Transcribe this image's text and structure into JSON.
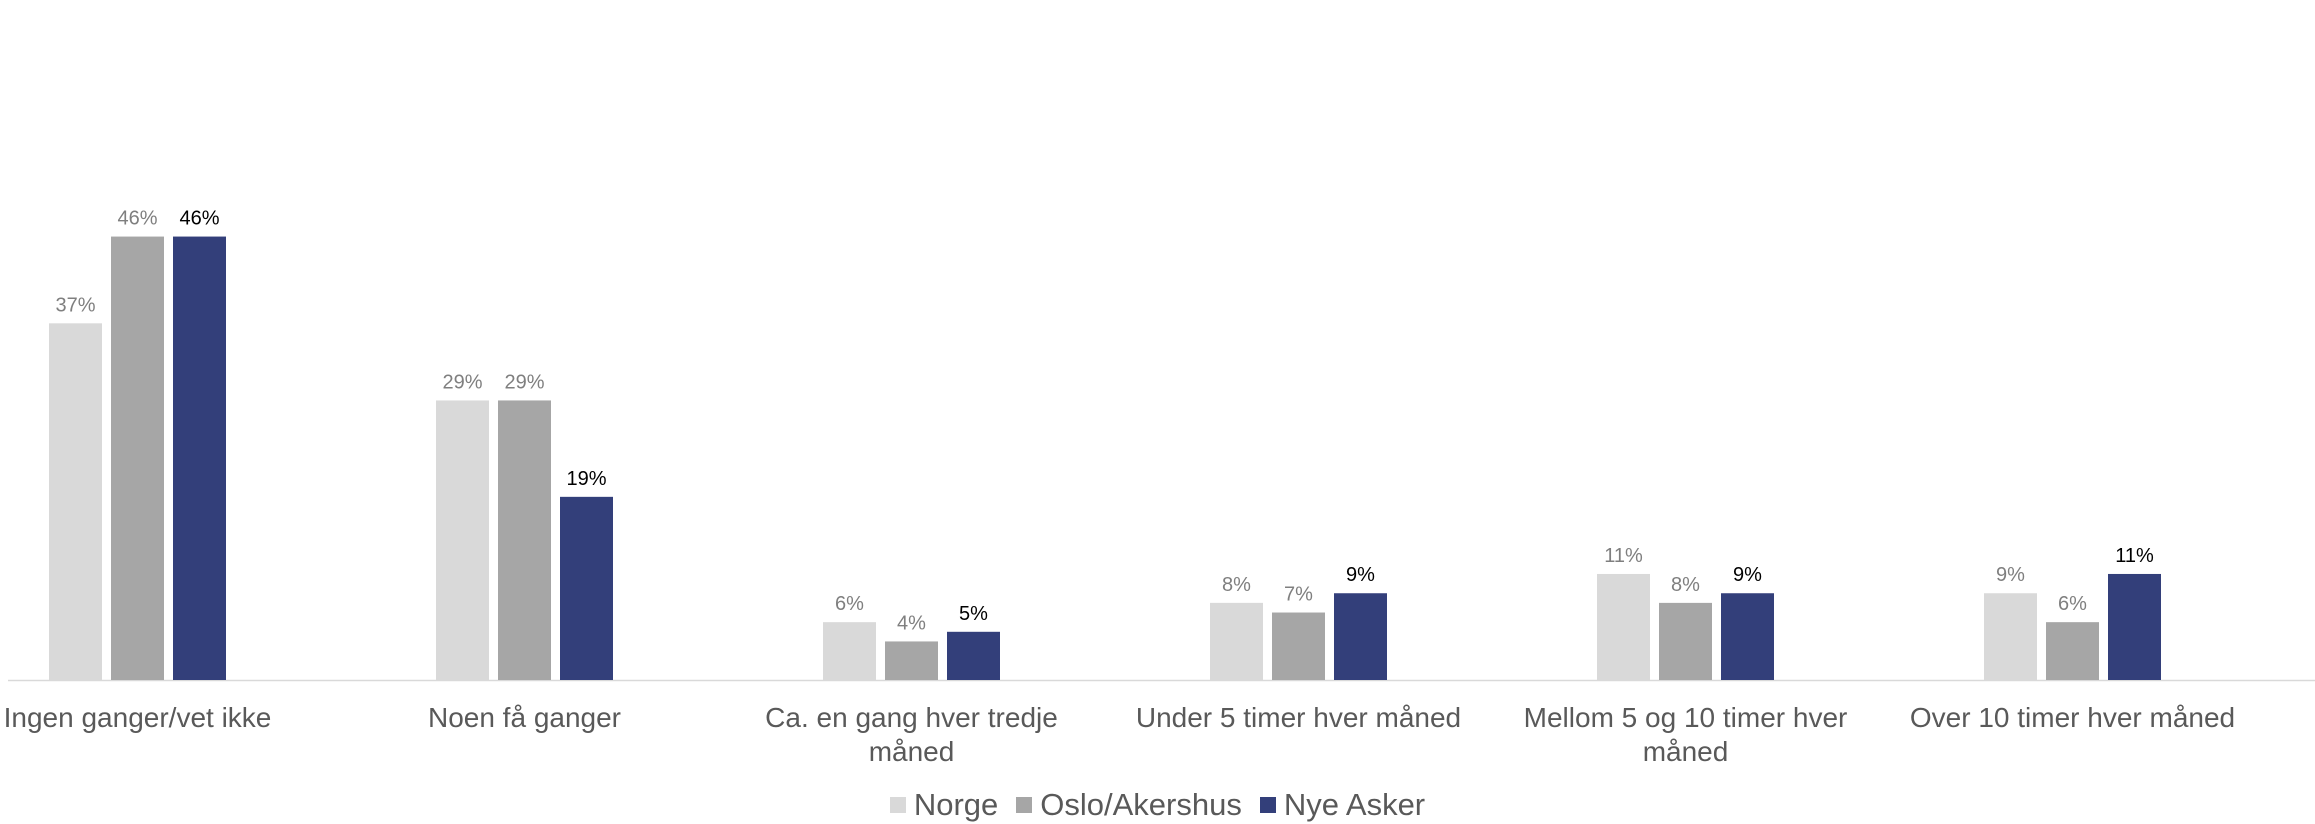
{
  "chart_data": {
    "type": "bar",
    "title": "",
    "xlabel": "",
    "ylabel": "",
    "ylim": [
      0,
      46
    ],
    "grid": false,
    "legend_position": "bottom",
    "categories": [
      "Ingen ganger/vet ikke",
      "Noen få ganger",
      "Ca. en gang hver tredje måned",
      "Under 5 timer hver måned",
      "Mellom 5 og 10 timer hver måned",
      "Over 10 timer hver måned"
    ],
    "series": [
      {
        "name": "Norge",
        "color": "#d9d9d9",
        "label_color": "#7f7f7f",
        "values": [
          37,
          29,
          6,
          8,
          11,
          9
        ],
        "labels": [
          "37%",
          "29%",
          "6%",
          "8%",
          "11%",
          "9%"
        ]
      },
      {
        "name": "Oslo/Akershus",
        "color": "#a6a6a6",
        "label_color": "#7f7f7f",
        "values": [
          46,
          29,
          4,
          7,
          8,
          6
        ],
        "labels": [
          "46%",
          "29%",
          "4%",
          "7%",
          "8%",
          "6%"
        ]
      },
      {
        "name": "Nye Asker",
        "color": "#333f7a",
        "label_color": "#000000",
        "values": [
          46,
          19,
          5,
          9,
          9,
          11
        ],
        "labels": [
          "46%",
          "19%",
          "5%",
          "9%",
          "9%",
          "11%"
        ]
      }
    ]
  }
}
